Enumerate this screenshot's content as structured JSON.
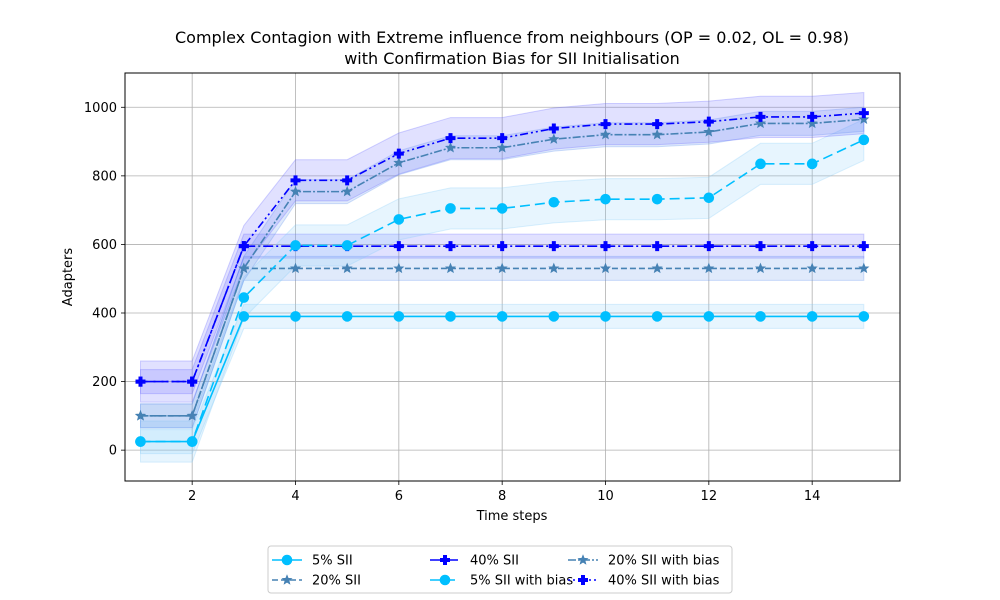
{
  "chart_data": {
    "type": "line",
    "title": "Complex Contagion with Extreme influence from neighbours (OP = 0.02, OL = 0.98)",
    "subtitle": "with Confirmation Bias for SII Initialisation",
    "xlabel": "Time steps",
    "ylabel": "Adapters",
    "xlim": [
      0.7,
      15.7
    ],
    "ylim": [
      -90,
      1100
    ],
    "xticks": [
      2,
      4,
      6,
      8,
      10,
      12,
      14
    ],
    "yticks": [
      0,
      200,
      400,
      600,
      800,
      1000
    ],
    "grid": true,
    "legend_position": "bottom-center",
    "x": [
      1,
      2,
      3,
      4,
      5,
      6,
      7,
      8,
      9,
      10,
      11,
      12,
      13,
      14,
      15
    ],
    "series": [
      {
        "name": "5% SII",
        "color": "#00bfff",
        "dash": "",
        "marker": "circle",
        "band": 35,
        "band_color": "#87cefa",
        "values": [
          25,
          25,
          390,
          390,
          390,
          390,
          390,
          390,
          390,
          390,
          390,
          390,
          390,
          390,
          390
        ]
      },
      {
        "name": "20% SII",
        "color": "#4682b4",
        "dash": "6,3",
        "marker": "star",
        "band": 35,
        "band_color": "#6495ed",
        "values": [
          100,
          100,
          530,
          530,
          530,
          530,
          530,
          530,
          530,
          530,
          530,
          530,
          530,
          530,
          530
        ]
      },
      {
        "name": "40% SII",
        "color": "#0000ff",
        "dash": "10,3,2,3",
        "marker": "plus",
        "band": 35,
        "band_color": "#6a6aff",
        "values": [
          200,
          200,
          595,
          595,
          595,
          595,
          595,
          595,
          595,
          595,
          595,
          595,
          595,
          595,
          595
        ]
      },
      {
        "name": "5% SII with bias",
        "color": "#00bfff",
        "dash": "10,5",
        "marker": "circle",
        "band": 60,
        "band_color": "#87cefa",
        "values": [
          25,
          25,
          445,
          597,
          597,
          673,
          705,
          705,
          723,
          732,
          732,
          736,
          835,
          835,
          905
        ]
      },
      {
        "name": "20% SII with bias",
        "color": "#4682b4",
        "dash": "8,2,2,2",
        "marker": "star",
        "band": 35,
        "band_color": "#6495ed",
        "values": [
          100,
          100,
          530,
          754,
          754,
          838,
          882,
          882,
          907,
          920,
          920,
          928,
          953,
          953,
          965
        ]
      },
      {
        "name": "40% SII with bias",
        "color": "#0000ff",
        "dash": "2,3,2,3,8,3",
        "marker": "plus",
        "band": 60,
        "band_color": "#6a6aff",
        "values": [
          200,
          200,
          595,
          787,
          787,
          865,
          910,
          910,
          938,
          951,
          951,
          958,
          972,
          972,
          983
        ]
      }
    ]
  }
}
